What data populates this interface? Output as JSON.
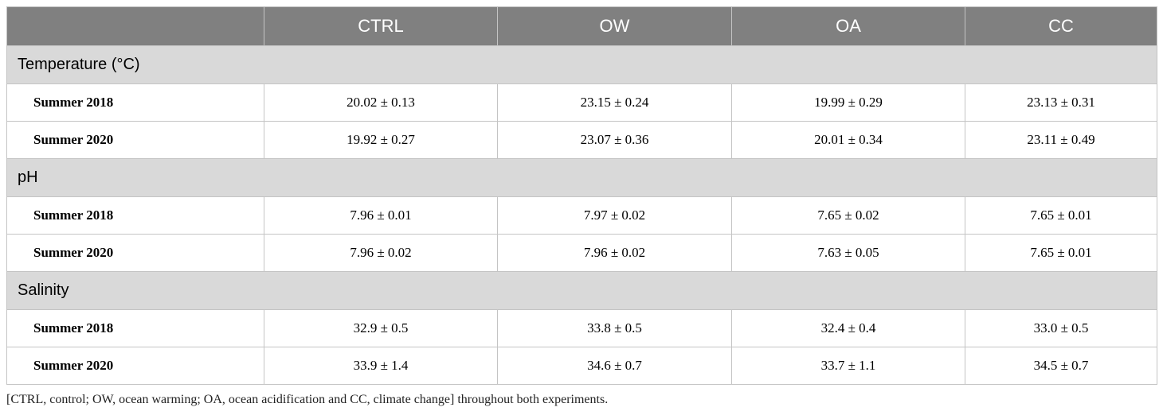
{
  "table": {
    "columns": [
      "CTRL",
      "OW",
      "OA",
      "CC"
    ],
    "sections": [
      {
        "title": "Temperature (°C)",
        "rows": [
          {
            "label": "Summer 2018",
            "cells": [
              "20.02 ± 0.13",
              "23.15 ± 0.24",
              "19.99 ± 0.29",
              "23.13 ± 0.31"
            ]
          },
          {
            "label": "Summer 2020",
            "cells": [
              "19.92 ± 0.27",
              "23.07 ± 0.36",
              "20.01 ± 0.34",
              "23.11 ± 0.49"
            ]
          }
        ]
      },
      {
        "title": "pH",
        "rows": [
          {
            "label": "Summer 2018",
            "cells": [
              "7.96 ± 0.01",
              "7.97 ± 0.02",
              "7.65 ± 0.02",
              "7.65 ± 0.01"
            ]
          },
          {
            "label": "Summer 2020",
            "cells": [
              "7.96 ± 0.02",
              "7.96 ± 0.02",
              "7.63 ± 0.05",
              "7.65 ± 0.01"
            ]
          }
        ]
      },
      {
        "title": "Salinity",
        "rows": [
          {
            "label": "Summer 2018",
            "cells": [
              "32.9 ± 0.5",
              "33.8 ± 0.5",
              "32.4 ± 0.4",
              "33.0 ± 0.5"
            ]
          },
          {
            "label": "Summer 2020",
            "cells": [
              "33.9 ± 1.4",
              "34.6 ± 0.7",
              "33.7 ± 1.1",
              "34.5 ± 0.7"
            ]
          }
        ]
      }
    ],
    "footnote": "[CTRL, control; OW, ocean warming; OA, ocean acidification and CC, climate change] throughout both experiments."
  }
}
